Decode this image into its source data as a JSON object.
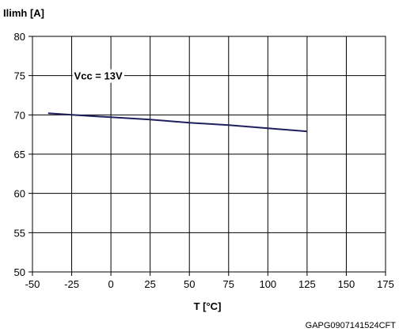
{
  "chart_data": {
    "type": "line",
    "ylabel": "Ilimh [A]",
    "xlabel": "T [°C]",
    "xlim": [
      -50,
      175
    ],
    "ylim": [
      50,
      80
    ],
    "x_ticks": [
      -50,
      -25,
      0,
      25,
      50,
      75,
      100,
      125,
      150,
      175
    ],
    "y_ticks": [
      50,
      55,
      60,
      65,
      70,
      75,
      80
    ],
    "grid": true,
    "annotation": "Vcc = 13V",
    "series": [
      {
        "color": "#1f1f5c",
        "x": [
          -40,
          -25,
          0,
          25,
          50,
          75,
          100,
          125
        ],
        "y": [
          70.2,
          70.0,
          69.7,
          69.4,
          69.0,
          68.7,
          68.3,
          67.9
        ]
      }
    ]
  },
  "footer_code": "GAPG0907141524CFT"
}
